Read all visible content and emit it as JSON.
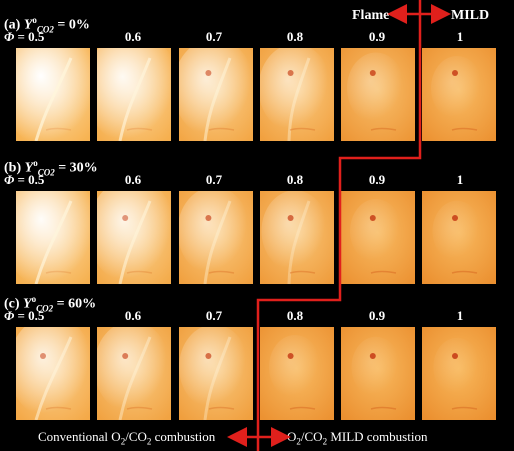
{
  "header": {
    "left_label": "Flame",
    "right_label": "MILD"
  },
  "rows": [
    {
      "tag": "(a)",
      "symbol": "Y",
      "superscript": "o",
      "subscript": "CO2",
      "value_text": "= 0%",
      "phi_prefix": "Φ",
      "phi_values": [
        "= 0.5",
        "0.6",
        "0.7",
        "0.8",
        "0.9",
        "1"
      ],
      "intensity": [
        1.0,
        0.9,
        0.7,
        0.55,
        0.3,
        0.2
      ]
    },
    {
      "tag": "(b)",
      "symbol": "Y",
      "superscript": "o",
      "subscript": "CO2",
      "value_text": "= 30%",
      "phi_prefix": "Φ",
      "phi_values": [
        "= 0.5",
        "0.6",
        "0.7",
        "0.8",
        "0.9",
        "1"
      ],
      "intensity": [
        0.95,
        0.8,
        0.55,
        0.45,
        0.2,
        0.15
      ]
    },
    {
      "tag": "(c)",
      "symbol": "Y",
      "superscript": "o",
      "subscript": "CO2",
      "value_text": "= 60%",
      "phi_prefix": "Φ",
      "phi_values": [
        "= 0.5",
        "0.6",
        "0.7",
        "0.8",
        "0.9",
        "1"
      ],
      "intensity": [
        0.75,
        0.6,
        0.5,
        0.2,
        0.15,
        0.12
      ]
    }
  ],
  "footer": {
    "left_pre": "Conventional O",
    "left_sub1": "2",
    "left_mid": "/CO",
    "left_sub2": "2",
    "left_post": " combustion",
    "right_pre": "O",
    "right_sub1": "2",
    "right_mid": "/CO",
    "right_sub2": "2",
    "right_post": " MILD combustion"
  },
  "colors": {
    "background": "#000000",
    "arrow": "#e0201c",
    "flame_bright": "#fff8e0",
    "flame_base": "#f7b352",
    "flame_deep": "#e98a2a"
  }
}
